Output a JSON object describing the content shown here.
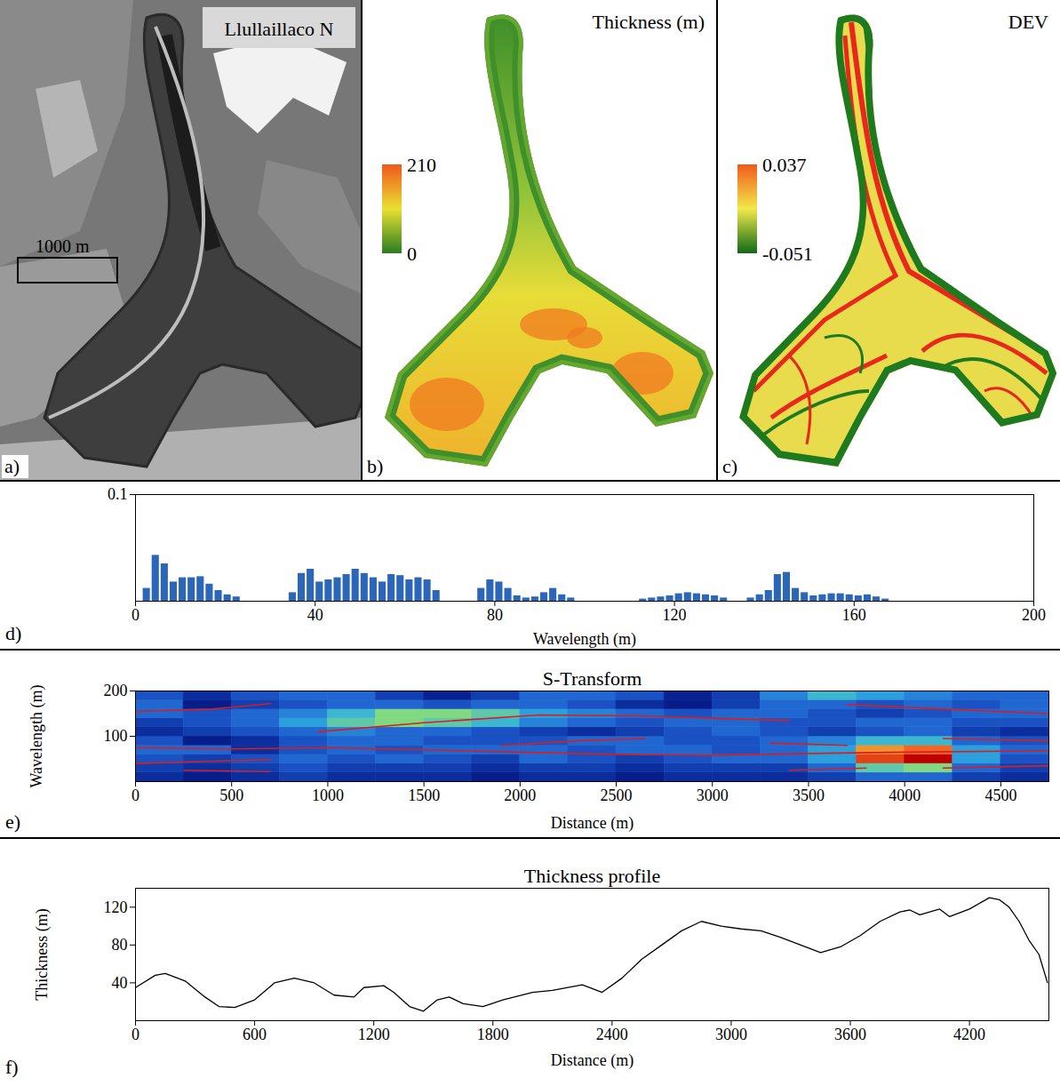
{
  "chart_data": [
    {
      "type": "image",
      "panel": "a)",
      "title": "Llullaillaco N",
      "annotations": [
        "1000 m"
      ]
    },
    {
      "type": "map",
      "panel": "b)",
      "title": "Thickness (m)",
      "colorbar": {
        "range": [
          0,
          210
        ],
        "ticks": [
          210,
          0
        ],
        "colors": [
          "#2a7d22",
          "#e9e032",
          "#f0581a"
        ]
      }
    },
    {
      "type": "map",
      "panel": "c)",
      "title": "DEV",
      "colorbar": {
        "range": [
          -0.051,
          0.037
        ],
        "ticks": [
          0.037,
          -0.051
        ],
        "colors": [
          "#0f6a16",
          "#f2e84a",
          "#f05a1a"
        ]
      }
    },
    {
      "type": "bar",
      "panel": "d)",
      "xlabel": "Wavelength (m)",
      "color": "#2b66b8",
      "x": [
        2.5,
        4.5,
        6.5,
        8.5,
        10.5,
        12.5,
        14.5,
        16.5,
        18.5,
        20.5,
        22.5,
        35,
        37,
        39,
        41,
        43,
        45,
        47,
        49,
        51,
        53,
        55,
        57,
        59,
        61,
        63,
        65,
        67,
        77,
        79,
        81,
        83,
        85,
        87,
        89,
        91,
        93,
        95,
        97,
        113,
        115,
        117,
        119,
        121,
        123,
        125,
        127,
        129,
        131,
        137,
        139,
        141,
        143,
        145,
        147,
        149,
        151,
        153,
        155,
        157,
        159,
        161,
        163,
        165,
        167
      ],
      "values": [
        0.012,
        0.043,
        0.035,
        0.018,
        0.022,
        0.022,
        0.023,
        0.016,
        0.01,
        0.006,
        0.004,
        0.008,
        0.026,
        0.03,
        0.018,
        0.02,
        0.022,
        0.025,
        0.03,
        0.026,
        0.022,
        0.018,
        0.025,
        0.024,
        0.02,
        0.022,
        0.02,
        0.01,
        0.012,
        0.02,
        0.018,
        0.012,
        0.005,
        0.003,
        0.004,
        0.008,
        0.012,
        0.006,
        0.003,
        0.002,
        0.003,
        0.004,
        0.005,
        0.007,
        0.008,
        0.007,
        0.006,
        0.005,
        0.003,
        0.003,
        0.006,
        0.01,
        0.025,
        0.027,
        0.012,
        0.008,
        0.005,
        0.006,
        0.007,
        0.007,
        0.006,
        0.005,
        0.006,
        0.004,
        0.002
      ],
      "xlim": [
        0,
        200
      ],
      "xticks": [
        0,
        40,
        80,
        120,
        160,
        200
      ],
      "ylim": [
        0,
        0.1
      ],
      "yticks": [
        0.1
      ],
      "grid": false
    },
    {
      "type": "heatmap",
      "panel": "e)",
      "title": "S-Transform",
      "xlabel": "Distance (m)",
      "ylabel": "Wavelength (m)",
      "x": [
        125,
        375,
        625,
        875,
        1125,
        1375,
        1625,
        1875,
        2125,
        2375,
        2625,
        2875,
        3125,
        3375,
        3625,
        3875,
        4125,
        4375,
        4625
      ],
      "y": [
        10,
        30,
        50,
        70,
        90,
        110,
        130,
        150,
        170,
        190
      ],
      "values": [
        [
          0.15,
          0.1,
          0.15,
          0.2,
          0.15,
          0.15,
          0.15,
          0.1,
          0.15,
          0.15,
          0.1,
          0.15,
          0.15,
          0.15,
          0.2,
          0.3,
          0.3,
          0.2,
          0.15
        ],
        [
          0.2,
          0.15,
          0.2,
          0.25,
          0.2,
          0.2,
          0.2,
          0.15,
          0.2,
          0.2,
          0.15,
          0.2,
          0.2,
          0.2,
          0.3,
          0.5,
          0.55,
          0.3,
          0.2
        ],
        [
          0.25,
          0.2,
          0.25,
          0.3,
          0.25,
          0.3,
          0.25,
          0.2,
          0.3,
          0.25,
          0.2,
          0.25,
          0.3,
          0.3,
          0.4,
          0.9,
          1,
          0.4,
          0.25
        ],
        [
          0.3,
          0.3,
          0.15,
          0.25,
          0.3,
          0.25,
          0.3,
          0.3,
          0.3,
          0.25,
          0.3,
          0.3,
          0.25,
          0.3,
          0.4,
          0.8,
          0.85,
          0.4,
          0.3
        ],
        [
          0.25,
          0.1,
          0.15,
          0.25,
          0.3,
          0.3,
          0.25,
          0.25,
          0.25,
          0.3,
          0.3,
          0.25,
          0.25,
          0.3,
          0.35,
          0.45,
          0.45,
          0.3,
          0.25
        ],
        [
          0.15,
          0.2,
          0.25,
          0.3,
          0.35,
          0.3,
          0.3,
          0.25,
          0.2,
          0.15,
          0.2,
          0.25,
          0.3,
          0.25,
          0.2,
          0.25,
          0.3,
          0.2,
          0.15
        ],
        [
          0.2,
          0.25,
          0.3,
          0.4,
          0.5,
          0.55,
          0.5,
          0.45,
          0.35,
          0.3,
          0.25,
          0.3,
          0.3,
          0.25,
          0.25,
          0.3,
          0.3,
          0.25,
          0.25
        ],
        [
          0.3,
          0.25,
          0.3,
          0.35,
          0.45,
          0.55,
          0.55,
          0.5,
          0.4,
          0.35,
          0.3,
          0.25,
          0.3,
          0.3,
          0.25,
          0.2,
          0.25,
          0.3,
          0.3
        ],
        [
          0.3,
          0.1,
          0.2,
          0.25,
          0.3,
          0.3,
          0.25,
          0.3,
          0.3,
          0.25,
          0.15,
          0.1,
          0.2,
          0.3,
          0.3,
          0.25,
          0.3,
          0.25,
          0.3
        ],
        [
          0.25,
          0.15,
          0.25,
          0.3,
          0.3,
          0.2,
          0.12,
          0.2,
          0.3,
          0.3,
          0.25,
          0.12,
          0.2,
          0.35,
          0.45,
          0.4,
          0.35,
          0.3,
          0.3
        ]
      ],
      "colorbar": {
        "range": [
          0,
          1
        ],
        "colors": [
          "#000060",
          "#0a2a9a",
          "#1f5fd0",
          "#2fb0e0",
          "#8ee070",
          "#f0e040",
          "#f06020",
          "#c00000"
        ]
      },
      "ridges": {
        "color": "#d42020",
        "lines": [
          {
            "x": [
              0,
              400,
              700
            ],
            "y": [
              155,
              160,
              172
            ]
          },
          {
            "x": [
              950,
              1500,
              2100,
              2600,
              3000,
              3400
            ],
            "y": [
              110,
              130,
              147,
              145,
              140,
              135
            ]
          },
          {
            "x": [
              3700,
              4200,
              4750
            ],
            "y": [
              170,
              160,
              150
            ]
          },
          {
            "x": [
              0,
              500,
              1000,
              1500,
              2000,
              2500,
              3000,
              3500,
              4000,
              4750
            ],
            "y": [
              75,
              72,
              75,
              70,
              65,
              60,
              58,
              62,
              65,
              68
            ]
          },
          {
            "x": [
              0,
              400,
              700
            ],
            "y": [
              40,
              45,
              48
            ]
          },
          {
            "x": [
              1900,
              2300,
              2650
            ],
            "y": [
              80,
              90,
              95
            ]
          },
          {
            "x": [
              3300,
              3700
            ],
            "y": [
              85,
              80
            ]
          },
          {
            "x": [
              4200,
              4750
            ],
            "y": [
              95,
              90
            ]
          },
          {
            "x": [
              250,
              700
            ],
            "y": [
              25,
              22
            ]
          },
          {
            "x": [
              3400,
              3800
            ],
            "y": [
              25,
              30
            ]
          },
          {
            "x": [
              4200,
              4750
            ],
            "y": [
              30,
              35
            ]
          }
        ]
      },
      "xlim": [
        0,
        4750
      ],
      "xticks": [
        0,
        500,
        1000,
        1500,
        2000,
        2500,
        3000,
        3500,
        4000,
        4500
      ],
      "ylim": [
        0,
        200
      ],
      "yticks": [
        100,
        200
      ]
    },
    {
      "type": "line",
      "panel": "f)",
      "title": "Thickness profile",
      "xlabel": "Distance (m)",
      "ylabel": "Thickness (m)",
      "color": "#000000",
      "x": [
        0,
        100,
        150,
        250,
        350,
        420,
        500,
        600,
        700,
        800,
        900,
        1000,
        1100,
        1150,
        1250,
        1300,
        1380,
        1450,
        1520,
        1580,
        1650,
        1750,
        1850,
        2000,
        2100,
        2250,
        2350,
        2450,
        2550,
        2650,
        2750,
        2850,
        2950,
        3050,
        3150,
        3250,
        3350,
        3450,
        3550,
        3650,
        3750,
        3850,
        3900,
        3950,
        4050,
        4100,
        4200,
        4300,
        4350,
        4400,
        4450,
        4500,
        4550,
        4593
      ],
      "values": [
        35,
        48,
        50,
        42,
        25,
        15,
        14,
        22,
        40,
        45,
        40,
        27,
        25,
        35,
        37,
        30,
        15,
        10,
        22,
        25,
        18,
        15,
        22,
        30,
        32,
        38,
        30,
        45,
        65,
        80,
        95,
        105,
        100,
        97,
        95,
        88,
        80,
        72,
        78,
        90,
        105,
        115,
        117,
        112,
        118,
        110,
        118,
        130,
        128,
        120,
        105,
        85,
        70,
        40
      ],
      "xlim": [
        0,
        4600
      ],
      "xticks": [
        0,
        600,
        1200,
        1800,
        2400,
        3000,
        3600,
        4200
      ],
      "ylim": [
        0,
        140
      ],
      "yticks": [
        40,
        80,
        120
      ]
    }
  ]
}
